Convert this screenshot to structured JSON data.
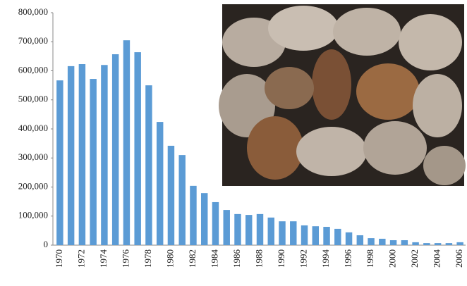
{
  "chart_data": {
    "type": "bar",
    "categories": [
      "1970",
      null,
      "1972",
      null,
      "1974",
      null,
      "1976",
      null,
      "1978",
      null,
      "1980",
      null,
      "1982",
      null,
      "1984",
      null,
      "1986",
      null,
      "1988",
      null,
      "1990",
      null,
      "1992",
      null,
      "1994",
      null,
      "1996",
      null,
      "1998",
      null,
      "2000",
      null,
      "2002",
      null,
      "2004",
      null,
      "2006"
    ],
    "values": [
      567000,
      616000,
      623000,
      572000,
      620000,
      657000,
      705000,
      664000,
      550000,
      424000,
      342000,
      310000,
      204000,
      179000,
      148000,
      121000,
      107000,
      104000,
      107000,
      95000,
      82000,
      82000,
      68000,
      65000,
      63000,
      56000,
      44000,
      34000,
      24000,
      22000,
      17000,
      17000,
      10000,
      7000,
      7000,
      7000,
      10000
    ],
    "color": "#5b9bd5",
    "ylim": [
      0,
      800000
    ],
    "yticks": [
      0,
      {
        "value": 100000,
        "label": "100,000"
      },
      {
        "value": 200000,
        "label": "200,000"
      },
      {
        "value": 300000,
        "label": "300,000"
      },
      {
        "value": 400000,
        "label": "400,000"
      },
      {
        "value": 500000,
        "label": "500,000"
      },
      {
        "value": 600000,
        "label": "600,000"
      },
      {
        "value": 700000,
        "label": "700,000"
      },
      {
        "value": 800000,
        "label": "800,000"
      }
    ],
    "grid": false
  }
}
